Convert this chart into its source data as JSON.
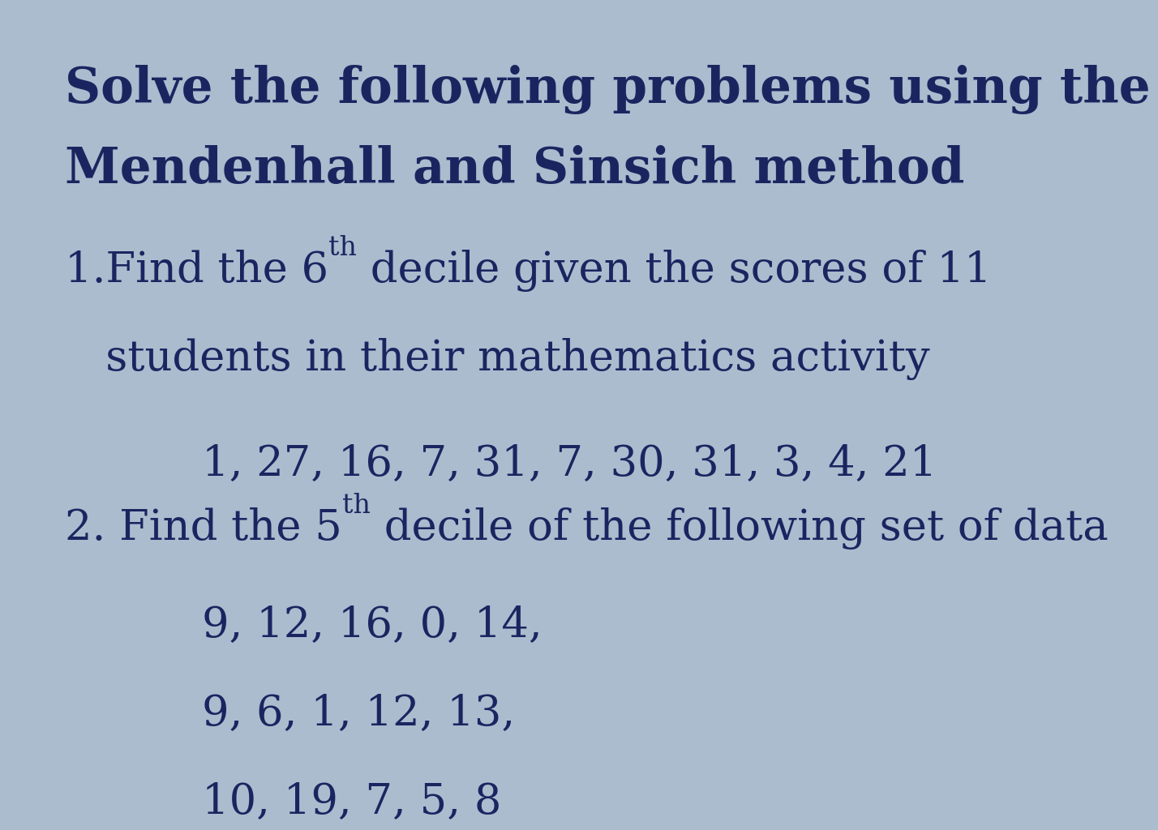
{
  "bg_color": "#aabcce",
  "card_color": "#bfcfdf",
  "text_color": "#1a2560",
  "title_line1": "Solve the following problems using the",
  "title_line2": "Mendenhall and Sinsich method",
  "problem1_pre": "1.Find the 6",
  "problem1_sup": "th",
  "problem1_post": " decile given the scores of 11",
  "problem1_line2": "   students in their mathematics activity",
  "problem1_data": "1, 27, 16, 7, 31, 7, 30, 31, 3, 4, 21",
  "problem2_pre": "2. Find the 5",
  "problem2_sup": "th",
  "problem2_post": " decile of the following set of data",
  "problem2_data_line1": "9, 12, 16, 0, 14,",
  "problem2_data_line2": "9, 6, 1, 12, 13,",
  "problem2_data_line3": "10, 19, 7, 5, 8",
  "title_fontsize": 44,
  "body_fontsize": 38,
  "sup_fontsize": 24,
  "data_fontsize": 38
}
